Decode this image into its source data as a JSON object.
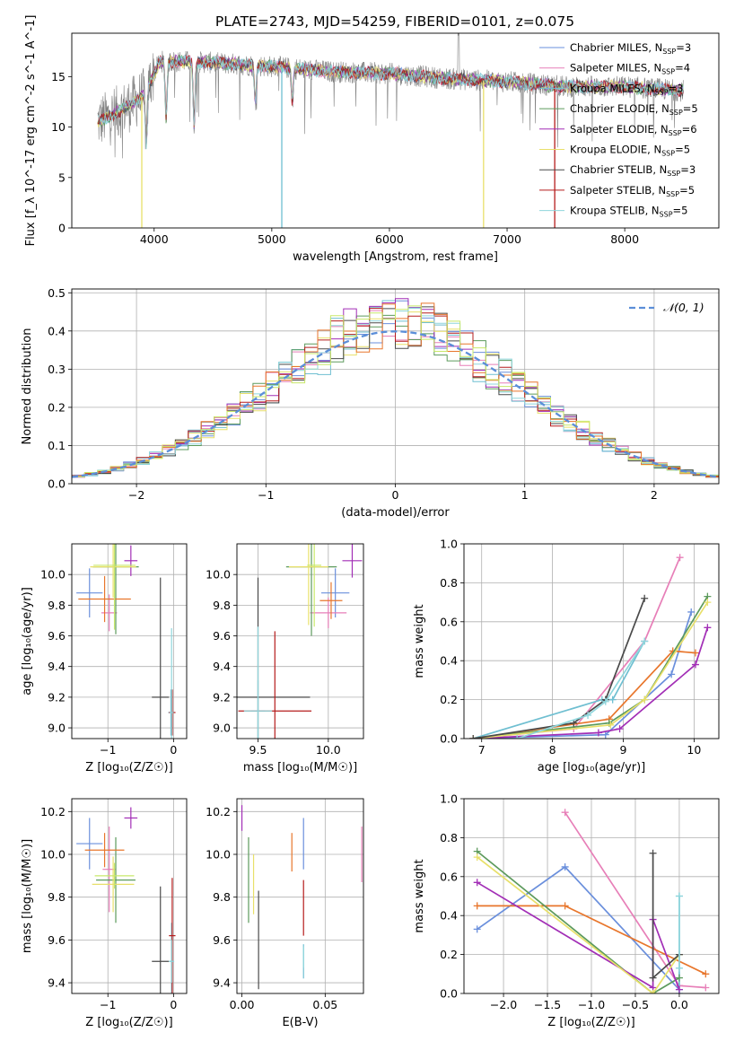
{
  "title": "PLATE=2743, MJD=54259, FIBERID=0101, z=0.075",
  "colors": {
    "Chabrier MILES": "#6a8fdc",
    "Salpeter MILES": "#e77fb8",
    "Kroupa MILES": "#6fbfd1",
    "Chabrier ELODIE": "#5c9a5c",
    "Salpeter ELODIE": "#a22eb6",
    "Kroupa ELODIE": "#e8e06a",
    "Chabrier STELIB": "#4a4a4a",
    "Salpeter STELIB": "#b51c1c",
    "Kroupa STELIB": "#8fd6dc",
    "orange": "#e8762c",
    "lime": "#c8e86a",
    "data": "#808080",
    "gauss": "#5b8ed8",
    "grid": "#b0b0b0"
  },
  "chart_data": [
    {
      "type": "line",
      "id": "spectrum",
      "xlabel": "wavelength [Angstrom, rest frame]",
      "ylabel": "Flux [f_λ 10^-17 erg cm^-2 s^-1 A^-1]",
      "xlim": [
        3300,
        8800
      ],
      "ylim": [
        0,
        19.3
      ],
      "xticks": [
        4000,
        5000,
        6000,
        7000,
        8000
      ],
      "yticks": [
        0,
        5,
        10,
        15
      ],
      "grid": false,
      "legend_position": "top-right",
      "legend": [
        {
          "label": "Chabrier MILES, N",
          "sub": "SSP",
          "eq": "=3"
        },
        {
          "label": "Salpeter MILES, N",
          "sub": "SSP",
          "eq": "=4"
        },
        {
          "label": "Kroupa MILES, N",
          "sub": "SSP",
          "eq": "=3"
        },
        {
          "label": "Chabrier ELODIE, N",
          "sub": "SSP",
          "eq": "=5"
        },
        {
          "label": "Salpeter ELODIE, N",
          "sub": "SSP",
          "eq": "=6"
        },
        {
          "label": "Kroupa ELODIE, N",
          "sub": "SSP",
          "eq": "=5"
        },
        {
          "label": "Chabrier STELIB, N",
          "sub": "SSP",
          "eq": "=3"
        },
        {
          "label": "Salpeter STELIB, N",
          "sub": "SSP",
          "eq": "=5"
        },
        {
          "label": "Kroupa STELIB, N",
          "sub": "SSP",
          "eq": "=5"
        }
      ],
      "continuum": {
        "x": [
          3520,
          3700,
          3900,
          4050,
          4300,
          4600,
          5000,
          5500,
          6000,
          6500,
          7000,
          7500,
          8000,
          8500
        ],
        "y": [
          10.5,
          11.5,
          13.0,
          16.5,
          16.5,
          16.3,
          16.0,
          15.5,
          15.3,
          14.8,
          14.5,
          14.0,
          14.0,
          13.6
        ]
      },
      "features": [
        {
          "x": 3934,
          "y": 8.3
        },
        {
          "x": 4102,
          "y": 11.0
        },
        {
          "x": 4340,
          "y": 10.2
        },
        {
          "x": 4861,
          "y": 12.5
        },
        {
          "x": 5175,
          "y": 12.6
        }
      ],
      "spikes": [
        {
          "x": 3895,
          "y": 0,
          "series": "Kroupa ELODIE"
        },
        {
          "x": 5085,
          "y": 0,
          "series": "Kroupa MILES"
        },
        {
          "x": 6800,
          "y": 0,
          "series": "Kroupa ELODIE"
        },
        {
          "x": 7405,
          "y": 0,
          "series": "Salpeter STELIB"
        }
      ]
    },
    {
      "type": "bar",
      "id": "residual-histogram",
      "xlabel": "(data-model)/error",
      "ylabel": "Normed distribution",
      "xlim": [
        -2.5,
        2.5
      ],
      "ylim": [
        0,
        0.51
      ],
      "xticks": [
        -2,
        -1,
        0,
        1,
        2
      ],
      "yticks": [
        0.0,
        0.1,
        0.2,
        0.3,
        0.4,
        0.5
      ],
      "grid": true,
      "legend_position": "top-right",
      "legend_label": "𝒩(0, 1)",
      "bin_width": 0.1,
      "bin_range": [
        -2.5,
        2.5
      ],
      "gauss_mean": 0,
      "gauss_sigma": 1
    },
    {
      "type": "scatter",
      "id": "age-vs-Z",
      "xlabel": "Z [log₁₀(Z/Z☉)]",
      "ylabel": "age  [log₁₀(age/yr)]",
      "xlim": [
        -1.55,
        0.2
      ],
      "ylim": [
        8.93,
        10.2
      ],
      "xticks": [
        -1,
        0
      ],
      "yticks": [
        9.0,
        9.2,
        9.4,
        9.6,
        9.8,
        10.0
      ],
      "grid": true,
      "points": [
        {
          "series": "Chabrier MILES",
          "x": -1.28,
          "xerr": 0.2,
          "y": 9.88,
          "yerr": 0.16
        },
        {
          "series": "Salpeter MILES",
          "x": -0.98,
          "xerr": 0.12,
          "y": 9.75,
          "yerr": 0.12
        },
        {
          "series": "Kroupa MILES",
          "x": -0.04,
          "xerr": 0.04,
          "y": 9.1,
          "yerr": 0.15
        },
        {
          "series": "Chabrier ELODIE",
          "x": -0.88,
          "xerr": 0.35,
          "y": 10.05,
          "yerr": 0.44
        },
        {
          "series": "Salpeter ELODIE",
          "x": -0.65,
          "xerr": 0.1,
          "y": 10.09,
          "yerr": 0.1
        },
        {
          "series": "Kroupa ELODIE",
          "x": -0.92,
          "xerr": 0.35,
          "y": 10.05,
          "yerr": 0.2
        },
        {
          "series": "Chabrier STELIB",
          "x": -0.2,
          "xerr": 0.13,
          "y": 9.2,
          "yerr": 0.78
        },
        {
          "series": "Salpeter STELIB",
          "x": -0.02,
          "xerr": 0.05,
          "y": 9.1,
          "yerr": 0.15
        },
        {
          "series": "Kroupa STELIB",
          "x": -0.03,
          "xerr": 0.03,
          "y": 9.1,
          "yerr": 0.55
        },
        {
          "series": "orange",
          "x": -1.05,
          "xerr": 0.4,
          "y": 9.84,
          "yerr": 0.15
        },
        {
          "series": "lime",
          "x": -0.9,
          "xerr": 0.32,
          "y": 10.06,
          "yerr": 0.42
        }
      ]
    },
    {
      "type": "scatter",
      "id": "age-vs-mass",
      "xlabel": "mass [log₁₀(M/M☉)]",
      "ylabel": "",
      "xlim": [
        9.35,
        10.25
      ],
      "ylim": [
        8.93,
        10.2
      ],
      "xticks": [
        9.5,
        10.0
      ],
      "yticks": [
        9.0,
        9.2,
        9.4,
        9.6,
        9.8,
        10.0
      ],
      "grid": true,
      "points": [
        {
          "series": "Chabrier MILES",
          "x": 10.05,
          "xerr": 0.1,
          "y": 9.88,
          "yerr": 0.16
        },
        {
          "series": "Salpeter MILES",
          "x": 10.0,
          "xerr": 0.13,
          "y": 9.75,
          "yerr": 0.1
        },
        {
          "series": "Kroupa MILES",
          "x": 9.5,
          "xerr": 0.05,
          "y": 9.11,
          "yerr": 0.2
        },
        {
          "series": "Chabrier ELODIE",
          "x": 9.88,
          "xerr": 0.18,
          "y": 10.05,
          "yerr": 0.45
        },
        {
          "series": "Salpeter ELODIE",
          "x": 10.17,
          "xerr": 0.07,
          "y": 10.09,
          "yerr": 0.11
        },
        {
          "series": "Kroupa ELODIE",
          "x": 9.86,
          "xerr": 0.14,
          "y": 10.05,
          "yerr": 0.38
        },
        {
          "series": "Chabrier STELIB",
          "x": 9.5,
          "xerr": 0.37,
          "y": 9.2,
          "yerr": 0.78
        },
        {
          "series": "Salpeter STELIB",
          "x": 9.62,
          "xerr": 0.26,
          "y": 9.11,
          "yerr": 0.52
        },
        {
          "series": "Kroupa STELIB",
          "x": 9.5,
          "xerr": 0.1,
          "y": 9.11,
          "yerr": 0.55
        },
        {
          "series": "orange",
          "x": 10.02,
          "xerr": 0.08,
          "y": 9.83,
          "yerr": 0.12
        },
        {
          "series": "lime",
          "x": 9.9,
          "xerr": 0.05,
          "y": 10.06,
          "yerr": 0.4
        }
      ]
    },
    {
      "type": "line",
      "id": "weight-vs-age",
      "xlabel": "age  [log₁₀(age/yr)]",
      "ylabel": "mass weight",
      "xlim": [
        6.75,
        10.35
      ],
      "ylim": [
        0,
        1.0
      ],
      "xticks": [
        7,
        8,
        9,
        10
      ],
      "yticks": [
        0.0,
        0.2,
        0.4,
        0.6,
        0.8,
        1.0
      ],
      "grid": true,
      "series": [
        {
          "name": "Chabrier MILES",
          "x": [
            6.88,
            8.75,
            9.68,
            9.96
          ],
          "y": [
            0.0,
            0.02,
            0.33,
            0.65
          ]
        },
        {
          "name": "Salpeter MILES",
          "x": [
            6.88,
            8.3,
            9.3,
            9.8
          ],
          "y": [
            0.0,
            0.05,
            0.5,
            0.93
          ]
        },
        {
          "name": "Kroupa MILES",
          "x": [
            6.88,
            8.7,
            8.85,
            9.3
          ],
          "y": [
            0.0,
            0.2,
            0.2,
            0.5
          ]
        },
        {
          "name": "orange",
          "x": [
            6.88,
            8.8,
            9.7,
            10.02
          ],
          "y": [
            0.0,
            0.1,
            0.45,
            0.44
          ]
        },
        {
          "name": "Chabrier ELODIE",
          "x": [
            6.88,
            8.8,
            9.3,
            10.19
          ],
          "y": [
            0.0,
            0.08,
            0.2,
            0.73
          ]
        },
        {
          "name": "Salpeter ELODIE",
          "x": [
            6.88,
            8.65,
            8.95,
            10.02,
            10.19
          ],
          "y": [
            0.0,
            0.03,
            0.05,
            0.38,
            0.57
          ]
        },
        {
          "name": "Kroupa ELODIE",
          "x": [
            6.88,
            8.82,
            9.3,
            10.19
          ],
          "y": [
            0.0,
            0.07,
            0.2,
            0.7
          ]
        },
        {
          "name": "Chabrier STELIB",
          "x": [
            6.88,
            8.3,
            8.75,
            9.3
          ],
          "y": [
            0.0,
            0.08,
            0.2,
            0.72
          ]
        },
        {
          "name": "Kroupa STELIB",
          "x": [
            7.5,
            8.5,
            8.75,
            9.3
          ],
          "y": [
            0.0,
            0.12,
            0.19,
            0.5
          ]
        }
      ]
    },
    {
      "type": "scatter",
      "id": "mass-vs-Z",
      "xlabel": "Z [log₁₀(Z/Z☉)]",
      "ylabel": "mass [log₁₀(M/M☉)]",
      "xlim": [
        -1.55,
        0.2
      ],
      "ylim": [
        9.35,
        10.26
      ],
      "xticks": [
        -1,
        0
      ],
      "yticks": [
        9.4,
        9.6,
        9.8,
        10.0,
        10.2
      ],
      "grid": true,
      "points": [
        {
          "series": "Chabrier MILES",
          "x": -1.28,
          "xerr": 0.2,
          "y": 10.05,
          "yerr": 0.12
        },
        {
          "series": "Salpeter MILES",
          "x": -0.98,
          "xerr": 0.1,
          "y": 9.93,
          "yerr": 0.2
        },
        {
          "series": "Kroupa MILES",
          "x": -0.03,
          "xerr": 0.03,
          "y": 9.5,
          "yerr": 0.18
        },
        {
          "series": "Chabrier ELODIE",
          "x": -0.88,
          "xerr": 0.3,
          "y": 9.88,
          "yerr": 0.2
        },
        {
          "series": "Salpeter ELODIE",
          "x": -0.65,
          "xerr": 0.1,
          "y": 10.17,
          "yerr": 0.05
        },
        {
          "series": "Kroupa ELODIE",
          "x": -0.92,
          "xerr": 0.32,
          "y": 9.86,
          "yerr": 0.13
        },
        {
          "series": "Chabrier STELIB",
          "x": -0.2,
          "xerr": 0.13,
          "y": 9.5,
          "yerr": 0.35
        },
        {
          "series": "Salpeter STELIB",
          "x": -0.02,
          "xerr": 0.05,
          "y": 9.62,
          "yerr": 0.27
        },
        {
          "series": "Kroupa STELIB",
          "x": -0.03,
          "xerr": 0.04,
          "y": 9.5,
          "yerr": 0.1
        },
        {
          "series": "orange",
          "x": -1.05,
          "xerr": 0.3,
          "y": 10.02,
          "yerr": 0.08
        },
        {
          "series": "lime",
          "x": -0.9,
          "xerr": 0.3,
          "y": 9.9,
          "yerr": 0.06
        }
      ]
    },
    {
      "type": "scatter",
      "id": "mass-vs-EBV",
      "xlabel": "E(B-V)",
      "ylabel": "",
      "xlim": [
        -0.003,
        0.073
      ],
      "ylim": [
        9.35,
        10.26
      ],
      "xticks": [
        0.0,
        0.05
      ],
      "yticks": [
        9.4,
        9.6,
        9.8,
        10.0,
        10.2
      ],
      "grid": true,
      "points": [
        {
          "series": "Chabrier MILES",
          "x": 0.037,
          "y": 10.05,
          "yerr": 0.12
        },
        {
          "series": "Salpeter MILES",
          "x": 0.072,
          "y": 10.0,
          "yerr": 0.13
        },
        {
          "series": "Kroupa MILES",
          "x": 0.037,
          "y": 9.5,
          "yerr": 0.08
        },
        {
          "series": "Chabrier ELODIE",
          "x": 0.004,
          "y": 9.88,
          "yerr": 0.2
        },
        {
          "series": "Salpeter ELODIE",
          "x": 0.0,
          "y": 10.17,
          "yerr": 0.06
        },
        {
          "series": "Kroupa ELODIE",
          "x": 0.007,
          "y": 9.86,
          "yerr": 0.14
        },
        {
          "series": "Chabrier STELIB",
          "x": 0.01,
          "y": 9.6,
          "yerr": 0.23
        },
        {
          "series": "Salpeter STELIB",
          "x": 0.037,
          "y": 9.75,
          "yerr": 0.13
        },
        {
          "series": "Kroupa STELIB",
          "x": 0.037,
          "y": 9.52,
          "yerr": 0.05
        },
        {
          "series": "orange",
          "x": 0.03,
          "y": 10.01,
          "yerr": 0.09
        }
      ]
    },
    {
      "type": "line",
      "id": "weight-vs-Z",
      "xlabel": "Z [log₁₀(Z/Z☉)]",
      "ylabel": "mass weight",
      "xlim": [
        -2.45,
        0.45
      ],
      "ylim": [
        0,
        1.0
      ],
      "xticks": [
        -2.0,
        -1.5,
        -1.0,
        -0.5,
        0.0
      ],
      "yticks": [
        0.0,
        0.2,
        0.4,
        0.6,
        0.8,
        1.0
      ],
      "grid": true,
      "series": [
        {
          "name": "Chabrier MILES",
          "x": [
            -2.3,
            -1.3,
            0.0
          ],
          "y": [
            0.33,
            0.65,
            0.02
          ]
        },
        {
          "name": "Salpeter MILES",
          "x": [
            -1.3,
            0.0,
            0.3
          ],
          "y": [
            0.93,
            0.04,
            0.03
          ]
        },
        {
          "name": "Kroupa MILES",
          "x": [
            0.0,
            0.0,
            0.0
          ],
          "y": [
            0.5,
            0.2,
            0.0
          ]
        },
        {
          "name": "orange",
          "x": [
            -2.3,
            -1.3,
            0.3
          ],
          "y": [
            0.45,
            0.45,
            0.1
          ]
        },
        {
          "name": "Chabrier ELODIE",
          "x": [
            -2.3,
            -0.3,
            0.0
          ],
          "y": [
            0.73,
            0.0,
            0.08
          ]
        },
        {
          "name": "Salpeter ELODIE",
          "x": [
            -2.3,
            -0.3,
            -0.3,
            0.0
          ],
          "y": [
            0.57,
            0.03,
            0.38,
            0.02
          ]
        },
        {
          "name": "Kroupa ELODIE",
          "x": [
            -2.3,
            -0.3,
            0.0
          ],
          "y": [
            0.7,
            0.0,
            0.2
          ]
        },
        {
          "name": "Chabrier STELIB",
          "x": [
            -0.3,
            -0.3,
            0.0
          ],
          "y": [
            0.72,
            0.08,
            0.2
          ]
        },
        {
          "name": "Kroupa STELIB",
          "x": [
            0.0,
            0.0
          ],
          "y": [
            0.5,
            0.13
          ]
        }
      ]
    }
  ]
}
